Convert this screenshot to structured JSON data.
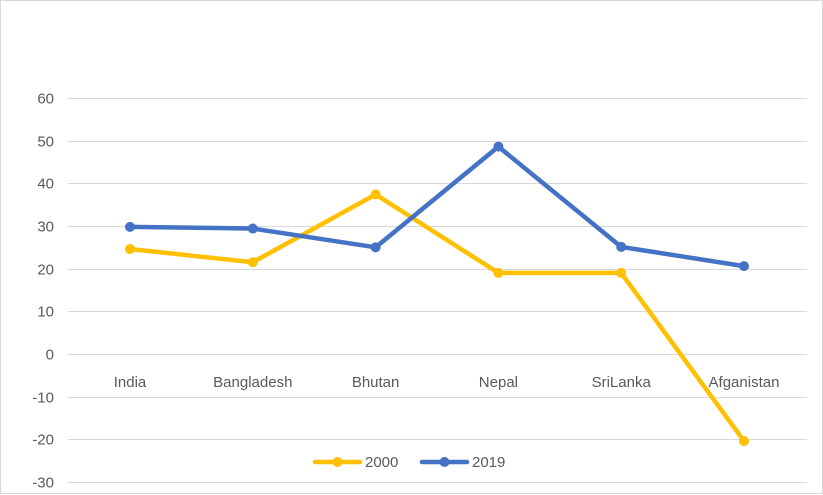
{
  "chart_data": {
    "type": "line",
    "categories": [
      "India",
      "Bangladesh",
      "Bhutan",
      "Nepal",
      "SriLanka",
      "Afganistan"
    ],
    "series": [
      {
        "name": "2000",
        "color": "#FFC000",
        "values": [
          24.6,
          21.5,
          37.4,
          19.0,
          19.0,
          -20.4
        ]
      },
      {
        "name": "2019",
        "color": "#4472C4",
        "values": [
          29.8,
          29.4,
          25.0,
          48.6,
          25.1,
          20.6
        ]
      }
    ],
    "ylim": [
      -30,
      60
    ],
    "yticks": [
      60,
      50,
      40,
      30,
      20,
      10,
      0,
      -10,
      -20,
      -30
    ],
    "grid": true,
    "legend": "bottom",
    "title": "",
    "xlabel": "",
    "ylabel": ""
  }
}
